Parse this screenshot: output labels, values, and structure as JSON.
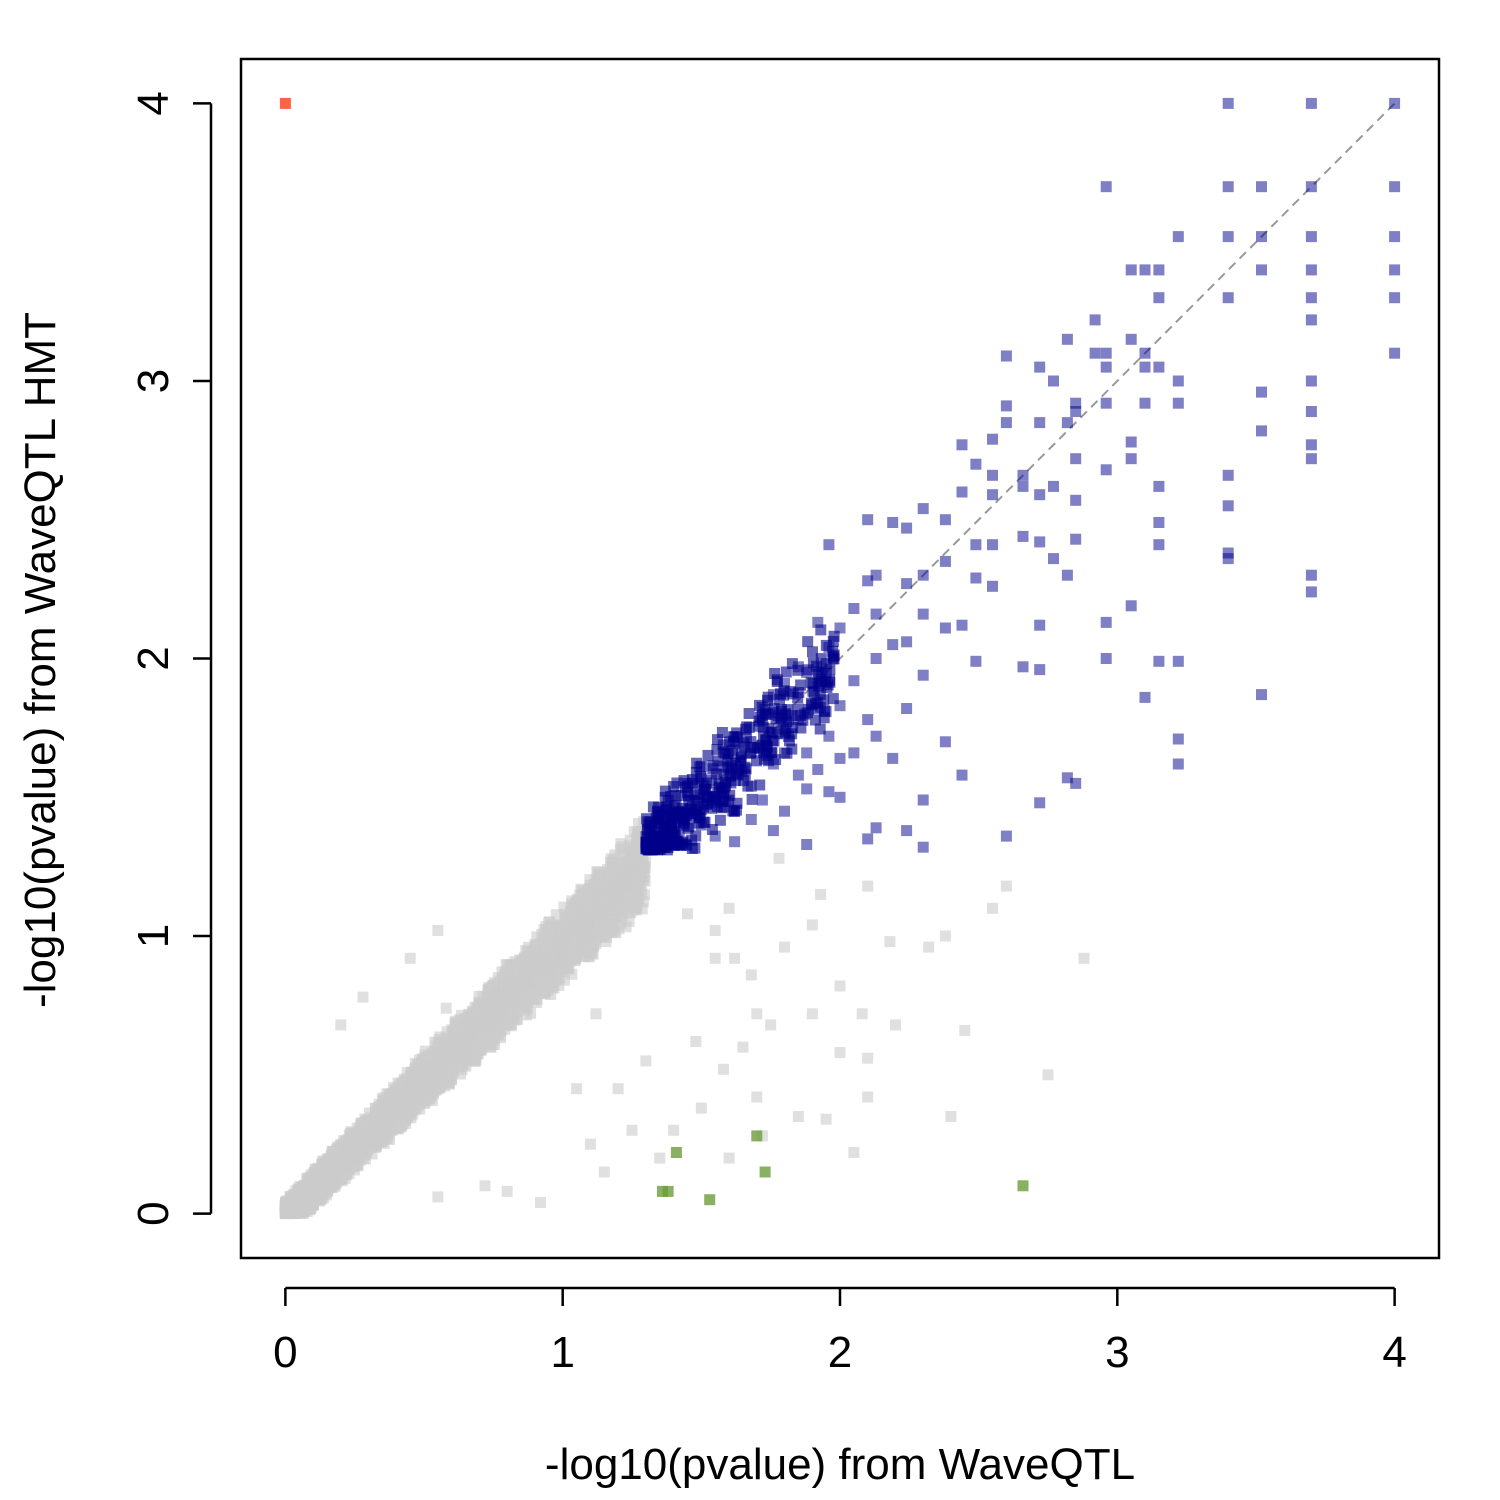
{
  "chart_data": {
    "type": "scatter",
    "title": "",
    "xlabel": "-log10(pvalue) from WaveQTL",
    "ylabel": "-log10(pvalue) from WaveQTL HMT",
    "xlim": [
      -0.16,
      4.16
    ],
    "ylim": [
      -0.16,
      4.16
    ],
    "x_ticks": [
      "0",
      "1",
      "2",
      "3",
      "4"
    ],
    "y_ticks": [
      "0",
      "1",
      "2",
      "3",
      "4"
    ],
    "reference_line": {
      "from": [
        0,
        0
      ],
      "to": [
        4,
        4
      ],
      "style": "dashed",
      "color": "#999999"
    },
    "grid": false,
    "legend": "none",
    "colors": {
      "not_significant": "#cccccc",
      "both_significant": "#00008b",
      "hmt_only": "#ff6347",
      "waveqtl_only": "#6b9e3c"
    },
    "series": [
      {
        "color": "#00008b",
        "opacity": 0.5,
        "points": [
          [
            4.0,
            4.0
          ],
          [
            4.0,
            3.7
          ],
          [
            4.0,
            3.52
          ],
          [
            4.0,
            3.4
          ],
          [
            4.0,
            3.3
          ],
          [
            4.0,
            3.1
          ],
          [
            3.7,
            4.0
          ],
          [
            3.7,
            3.7
          ],
          [
            3.7,
            3.52
          ],
          [
            3.7,
            3.4
          ],
          [
            3.7,
            3.3
          ],
          [
            3.7,
            3.22
          ],
          [
            3.7,
            3.0
          ],
          [
            3.7,
            2.89
          ],
          [
            3.7,
            2.77
          ],
          [
            3.7,
            2.72
          ],
          [
            3.7,
            2.3
          ],
          [
            3.7,
            2.24
          ],
          [
            3.52,
            3.7
          ],
          [
            3.52,
            3.52
          ],
          [
            3.52,
            3.4
          ],
          [
            3.52,
            2.96
          ],
          [
            3.52,
            2.82
          ],
          [
            3.52,
            1.87
          ],
          [
            3.4,
            4.0
          ],
          [
            3.4,
            3.7
          ],
          [
            3.4,
            3.52
          ],
          [
            3.4,
            3.3
          ],
          [
            3.4,
            2.66
          ],
          [
            3.4,
            2.55
          ],
          [
            3.4,
            2.38
          ],
          [
            3.4,
            2.36
          ],
          [
            3.22,
            3.52
          ],
          [
            3.22,
            3.0
          ],
          [
            3.22,
            2.92
          ],
          [
            3.22,
            1.99
          ],
          [
            3.22,
            1.71
          ],
          [
            3.22,
            1.62
          ],
          [
            3.15,
            3.4
          ],
          [
            3.15,
            3.3
          ],
          [
            3.15,
            3.05
          ],
          [
            3.15,
            2.62
          ],
          [
            3.15,
            2.49
          ],
          [
            3.15,
            2.41
          ],
          [
            3.15,
            1.99
          ],
          [
            3.1,
            3.4
          ],
          [
            3.1,
            3.1
          ],
          [
            3.1,
            3.05
          ],
          [
            3.1,
            2.92
          ],
          [
            3.1,
            1.86
          ],
          [
            3.05,
            3.4
          ],
          [
            3.05,
            3.15
          ],
          [
            3.05,
            2.78
          ],
          [
            3.05,
            2.72
          ],
          [
            3.05,
            2.19
          ],
          [
            2.96,
            3.7
          ],
          [
            2.96,
            3.1
          ],
          [
            2.96,
            3.05
          ],
          [
            2.96,
            2.92
          ],
          [
            2.96,
            2.68
          ],
          [
            2.96,
            2.13
          ],
          [
            2.96,
            2.0
          ],
          [
            2.92,
            3.22
          ],
          [
            2.92,
            3.1
          ],
          [
            2.85,
            2.92
          ],
          [
            2.85,
            2.89
          ],
          [
            2.85,
            2.72
          ],
          [
            2.85,
            2.57
          ],
          [
            2.85,
            2.43
          ],
          [
            2.85,
            1.55
          ],
          [
            2.82,
            3.15
          ],
          [
            2.82,
            2.85
          ],
          [
            2.82,
            2.3
          ],
          [
            2.82,
            1.57
          ],
          [
            2.77,
            3.0
          ],
          [
            2.77,
            2.62
          ],
          [
            2.77,
            2.36
          ],
          [
            2.72,
            3.05
          ],
          [
            2.72,
            2.85
          ],
          [
            2.72,
            2.59
          ],
          [
            2.72,
            2.42
          ],
          [
            2.72,
            2.12
          ],
          [
            2.72,
            1.96
          ],
          [
            2.72,
            1.48
          ],
          [
            2.66,
            2.66
          ],
          [
            2.66,
            2.62
          ],
          [
            2.66,
            2.44
          ],
          [
            2.66,
            1.97
          ],
          [
            2.6,
            3.09
          ],
          [
            2.6,
            2.91
          ],
          [
            2.6,
            2.85
          ],
          [
            2.6,
            1.36
          ],
          [
            2.55,
            2.79
          ],
          [
            2.55,
            2.66
          ],
          [
            2.55,
            2.59
          ],
          [
            2.55,
            2.41
          ],
          [
            2.55,
            2.26
          ],
          [
            2.49,
            2.7
          ],
          [
            2.49,
            2.41
          ],
          [
            2.49,
            2.29
          ],
          [
            2.49,
            1.99
          ],
          [
            2.44,
            2.77
          ],
          [
            2.44,
            2.6
          ],
          [
            2.44,
            2.12
          ],
          [
            2.44,
            1.58
          ],
          [
            2.38,
            2.5
          ],
          [
            2.38,
            2.35
          ],
          [
            2.38,
            2.11
          ],
          [
            2.38,
            1.7
          ],
          [
            2.3,
            2.54
          ],
          [
            2.3,
            2.3
          ],
          [
            2.3,
            2.16
          ],
          [
            2.3,
            1.94
          ],
          [
            2.3,
            1.49
          ],
          [
            2.3,
            1.32
          ],
          [
            2.24,
            2.47
          ],
          [
            2.24,
            2.27
          ],
          [
            2.24,
            2.06
          ],
          [
            2.24,
            1.82
          ],
          [
            2.24,
            1.38
          ],
          [
            2.19,
            2.49
          ],
          [
            2.19,
            2.05
          ],
          [
            2.19,
            1.64
          ],
          [
            2.13,
            2.3
          ],
          [
            2.13,
            2.16
          ],
          [
            2.13,
            2.0
          ],
          [
            2.13,
            1.72
          ],
          [
            2.13,
            1.39
          ],
          [
            2.1,
            2.5
          ],
          [
            2.1,
            2.28
          ],
          [
            2.1,
            1.78
          ],
          [
            2.1,
            1.35
          ],
          [
            2.05,
            2.18
          ],
          [
            2.05,
            1.92
          ],
          [
            2.05,
            1.66
          ],
          [
            2.0,
            2.11
          ],
          [
            2.0,
            1.83
          ],
          [
            2.0,
            1.64
          ],
          [
            2.0,
            1.5
          ],
          [
            1.96,
            2.41
          ],
          [
            1.96,
            2.04
          ],
          [
            1.96,
            1.72
          ],
          [
            1.96,
            1.52
          ],
          [
            1.92,
            2.13
          ],
          [
            1.92,
            1.82
          ],
          [
            1.92,
            1.6
          ],
          [
            1.88,
            1.95
          ],
          [
            1.88,
            1.66
          ],
          [
            1.88,
            1.53
          ],
          [
            1.88,
            1.33
          ],
          [
            1.85,
            1.97
          ],
          [
            1.85,
            1.78
          ],
          [
            1.85,
            1.58
          ],
          [
            1.8,
            1.91
          ],
          [
            1.8,
            1.66
          ],
          [
            1.8,
            1.45
          ],
          [
            1.76,
            1.87
          ],
          [
            1.76,
            1.62
          ],
          [
            1.76,
            1.38
          ],
          [
            1.72,
            1.78
          ],
          [
            1.72,
            1.49
          ],
          [
            1.68,
            1.54
          ],
          [
            1.68,
            1.42
          ],
          [
            1.62,
            1.45
          ],
          [
            1.62,
            1.34
          ],
          [
            1.55,
            1.48
          ],
          [
            1.55,
            1.36
          ],
          [
            1.5,
            1.4
          ],
          [
            1.46,
            1.44
          ],
          [
            1.42,
            1.38
          ],
          [
            1.38,
            1.34
          ],
          [
            1.34,
            1.34
          ]
        ]
      },
      {
        "color": "#00008b",
        "opacity": 0.6,
        "cluster": {
          "count": 430,
          "seed": 7,
          "x_range": [
            1.3,
            1.98
          ],
          "y_offset": [
            -0.14,
            0.14
          ],
          "slope": 1.0,
          "y_min": 1.31
        }
      },
      {
        "color": "#cccccc",
        "opacity": 0.6,
        "cluster": {
          "count": 4800,
          "seed": 13,
          "x_range": [
            0.0,
            1.3
          ],
          "y_offset": [
            -0.18,
            0.12
          ],
          "slope": 1.0,
          "y_min": 0.0
        }
      },
      {
        "color": "#cccccc",
        "opacity": 0.6,
        "points": [
          [
            1.45,
            1.08
          ],
          [
            1.55,
            1.02
          ],
          [
            1.62,
            0.92
          ],
          [
            1.7,
            0.72
          ],
          [
            1.75,
            0.68
          ],
          [
            1.68,
            0.86
          ],
          [
            1.8,
            0.96
          ],
          [
            1.9,
            1.04
          ],
          [
            1.93,
            1.15
          ],
          [
            2.0,
            0.82
          ],
          [
            2.08,
            0.72
          ],
          [
            2.1,
            1.18
          ],
          [
            2.2,
            0.68
          ],
          [
            2.32,
            0.96
          ],
          [
            2.38,
            1.0
          ],
          [
            2.45,
            0.66
          ],
          [
            2.55,
            1.1
          ],
          [
            2.6,
            1.18
          ],
          [
            2.75,
            0.5
          ],
          [
            2.88,
            0.92
          ],
          [
            2.0,
            0.58
          ],
          [
            2.1,
            0.42
          ],
          [
            2.4,
            0.35
          ],
          [
            1.85,
            0.35
          ],
          [
            1.95,
            0.34
          ],
          [
            1.5,
            0.38
          ],
          [
            1.58,
            0.52
          ],
          [
            1.65,
            0.6
          ],
          [
            1.2,
            0.45
          ],
          [
            1.25,
            0.3
          ],
          [
            1.4,
            0.3
          ],
          [
            1.12,
            0.72
          ],
          [
            1.05,
            0.45
          ],
          [
            1.35,
            0.2
          ],
          [
            1.3,
            0.55
          ],
          [
            1.7,
            0.42
          ],
          [
            1.72,
            0.28
          ],
          [
            2.05,
            0.22
          ],
          [
            1.6,
            1.1
          ],
          [
            1.6,
            0.2
          ],
          [
            1.15,
            0.15
          ],
          [
            0.92,
            0.04
          ],
          [
            0.8,
            0.08
          ],
          [
            0.72,
            0.1
          ],
          [
            0.55,
            0.06
          ],
          [
            0.98,
            0.9
          ],
          [
            1.05,
            1.05
          ],
          [
            0.58,
            0.74
          ],
          [
            0.28,
            0.78
          ],
          [
            0.2,
            0.68
          ],
          [
            0.55,
            1.02
          ],
          [
            0.45,
            0.92
          ],
          [
            1.1,
            0.25
          ],
          [
            1.48,
            0.62
          ],
          [
            1.55,
            0.92
          ],
          [
            2.1,
            0.56
          ],
          [
            1.78,
            1.28
          ],
          [
            2.18,
            0.98
          ],
          [
            1.9,
            0.72
          ]
        ]
      },
      {
        "color": "#6b9e3c",
        "opacity": 0.8,
        "points": [
          [
            1.36,
            0.08
          ],
          [
            1.38,
            0.08
          ],
          [
            1.41,
            0.22
          ],
          [
            1.53,
            0.05
          ],
          [
            1.7,
            0.28
          ],
          [
            1.73,
            0.15
          ],
          [
            2.66,
            0.1
          ]
        ]
      },
      {
        "color": "#ff6347",
        "opacity": 1.0,
        "points": [
          [
            0.0,
            4.0
          ]
        ]
      }
    ]
  }
}
